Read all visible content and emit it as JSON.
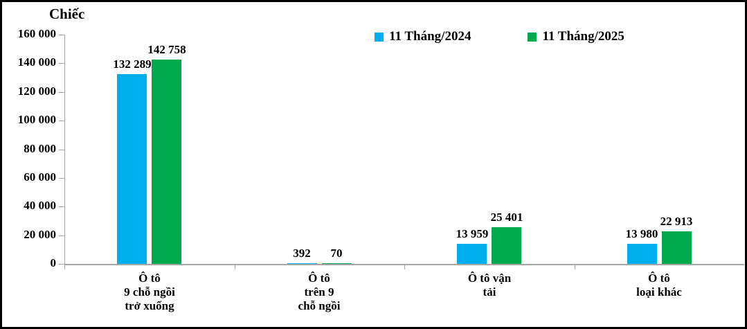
{
  "chart_data": {
    "type": "bar",
    "title": "",
    "unit_label": "Chiếc",
    "legend_position": "top",
    "grid": false,
    "background_color": "#FFFFFF",
    "frame_border_color": "#000000",
    "axis_color": "#A6A6A6",
    "categories": [
      [
        "Ô tô",
        "9 chỗ ngồi",
        "trở xuống"
      ],
      [
        "Ô tô",
        "trên 9",
        "chỗ ngồi"
      ],
      [
        "Ô tô vận",
        "tải"
      ],
      [
        "Ô tô",
        "loại khác"
      ]
    ],
    "series": [
      {
        "name": "11 Tháng/2024",
        "color": "#00AEEF",
        "values": [
          132289,
          392,
          13959,
          13980
        ],
        "value_labels": [
          "132 289",
          "392",
          "13 959",
          "13 980"
        ]
      },
      {
        "name": "11 Tháng/2025",
        "color": "#00A84E",
        "values": [
          142758,
          70,
          25401,
          22913
        ],
        "value_labels": [
          "142 758",
          "70",
          "25 401",
          "22 913"
        ]
      }
    ],
    "y_axis": {
      "min": 0,
      "max": 160000,
      "step": 20000,
      "tick_labels": [
        "0",
        "20 000",
        "40 000",
        "60 000",
        "80 000",
        "100 000",
        "120 000",
        "140 000",
        "160 000"
      ]
    }
  }
}
